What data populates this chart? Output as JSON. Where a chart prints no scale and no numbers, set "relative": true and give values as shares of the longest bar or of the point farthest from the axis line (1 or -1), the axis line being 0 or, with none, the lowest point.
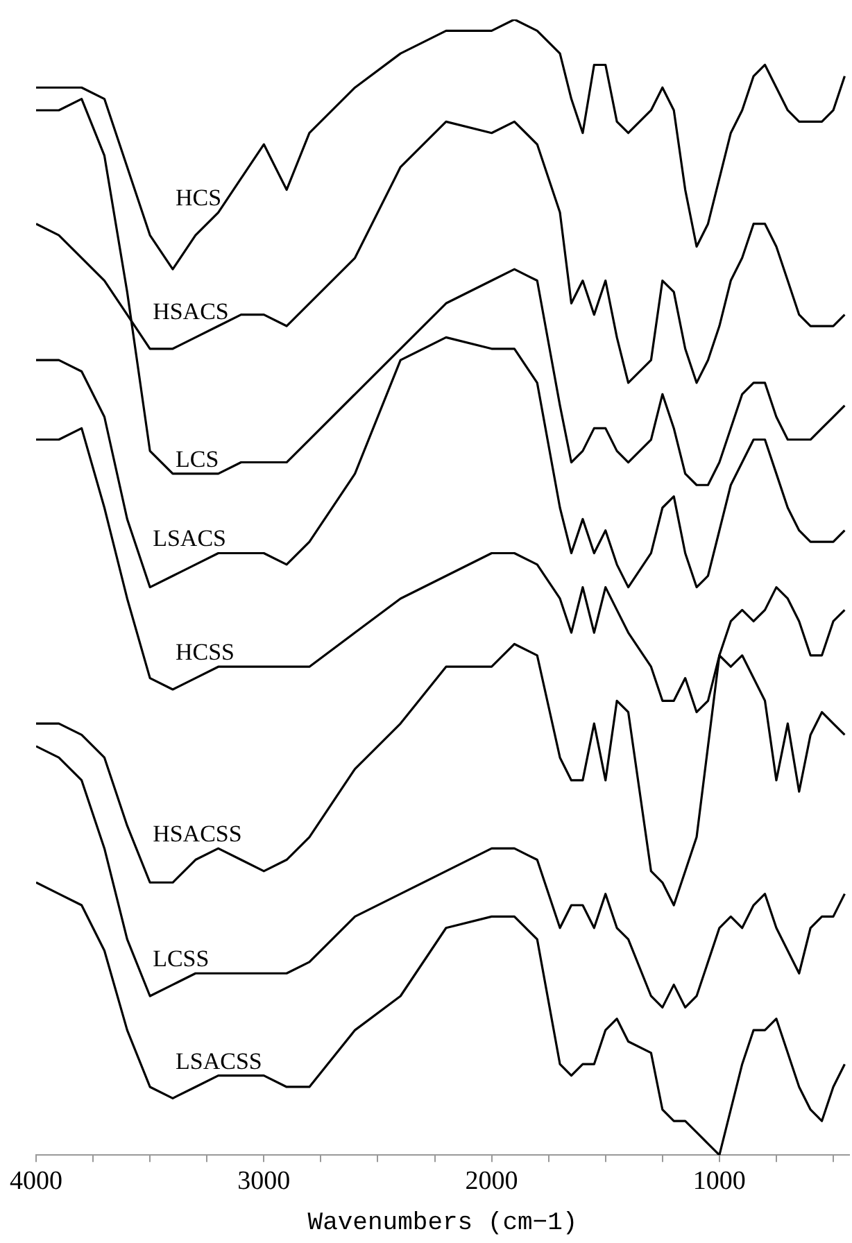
{
  "chart_data": {
    "type": "line",
    "xlabel": "Wavenumbers (cm−1)",
    "relative": true,
    "tick_labels": "x",
    "xlim": [
      4000,
      430
    ],
    "xticks": [
      4000,
      {
        "value": 3750,
        "label": null
      },
      {
        "value": 3500,
        "label": null
      },
      {
        "value": 3250,
        "label": null
      },
      3000,
      {
        "value": 2750,
        "label": null
      },
      {
        "value": 2500,
        "label": null
      },
      {
        "value": 2250,
        "label": null
      },
      2000,
      {
        "value": 1750,
        "label": null
      },
      {
        "value": 1500,
        "label": null
      },
      {
        "value": 1250,
        "label": null
      },
      1000,
      {
        "value": 750,
        "label": null
      },
      {
        "value": 500,
        "label": null
      }
    ],
    "x": [
      4000,
      3900,
      3800,
      3700,
      3600,
      3500,
      3400,
      3300,
      3200,
      3100,
      3000,
      2900,
      2800,
      2600,
      2400,
      2200,
      2000,
      1900,
      1800,
      1700,
      1650,
      1600,
      1550,
      1500,
      1450,
      1400,
      1300,
      1250,
      1200,
      1150,
      1100,
      1050,
      1000,
      950,
      900,
      850,
      800,
      750,
      700,
      650,
      600,
      550,
      500,
      450
    ],
    "series": [
      {
        "name": "HCS",
        "color": "#000000",
        "values": [
          0.94,
          0.94,
          0.94,
          0.93,
          0.87,
          0.81,
          0.78,
          0.81,
          0.83,
          0.86,
          0.89,
          0.85,
          0.9,
          0.94,
          0.97,
          0.99,
          0.99,
          1.0,
          0.99,
          0.97,
          0.93,
          0.9,
          0.96,
          0.96,
          0.91,
          0.9,
          0.92,
          0.94,
          0.92,
          0.85,
          0.8,
          0.82,
          0.86,
          0.9,
          0.92,
          0.95,
          0.96,
          0.94,
          0.92,
          0.91,
          0.91,
          0.91,
          0.92,
          0.95
        ]
      },
      {
        "name": "HSACS",
        "color": "#000000",
        "values": [
          0.82,
          0.81,
          0.79,
          0.77,
          0.74,
          0.71,
          0.71,
          0.72,
          0.73,
          0.74,
          0.74,
          0.73,
          0.75,
          0.79,
          0.87,
          0.91,
          0.9,
          0.91,
          0.89,
          0.83,
          0.75,
          0.77,
          0.74,
          0.77,
          0.72,
          0.68,
          0.7,
          0.77,
          0.76,
          0.71,
          0.68,
          0.7,
          0.73,
          0.77,
          0.79,
          0.82,
          0.82,
          0.8,
          0.77,
          0.74,
          0.73,
          0.73,
          0.73,
          0.74
        ]
      },
      {
        "name": "LCS",
        "color": "#000000",
        "values": [
          0.92,
          0.92,
          0.93,
          0.88,
          0.76,
          0.62,
          0.6,
          0.6,
          0.6,
          0.61,
          0.61,
          0.61,
          0.63,
          0.67,
          0.71,
          0.75,
          0.77,
          0.78,
          0.77,
          0.66,
          0.61,
          0.62,
          0.64,
          0.64,
          0.62,
          0.61,
          0.63,
          0.67,
          0.64,
          0.6,
          0.59,
          0.59,
          0.61,
          0.64,
          0.67,
          0.68,
          0.68,
          0.65,
          0.63,
          0.63,
          0.63,
          0.64,
          0.65,
          0.66
        ]
      },
      {
        "name": "LSACS",
        "color": "#000000",
        "values": [
          0.7,
          0.7,
          0.69,
          0.65,
          0.56,
          0.5,
          0.51,
          0.52,
          0.53,
          0.53,
          0.53,
          0.52,
          0.54,
          0.6,
          0.7,
          0.72,
          0.71,
          0.71,
          0.68,
          0.57,
          0.53,
          0.56,
          0.53,
          0.55,
          0.52,
          0.5,
          0.53,
          0.57,
          0.58,
          0.53,
          0.5,
          0.51,
          0.55,
          0.59,
          0.61,
          0.63,
          0.63,
          0.6,
          0.57,
          0.55,
          0.54,
          0.54,
          0.54,
          0.55
        ]
      },
      {
        "name": "HCSS",
        "color": "#000000",
        "values": [
          0.63,
          0.63,
          0.64,
          0.57,
          0.49,
          0.42,
          0.41,
          0.42,
          0.43,
          0.43,
          0.43,
          0.43,
          0.43,
          0.46,
          0.49,
          0.51,
          0.53,
          0.53,
          0.52,
          0.49,
          0.46,
          0.5,
          0.46,
          0.5,
          0.48,
          0.46,
          0.43,
          0.4,
          0.4,
          0.42,
          0.39,
          0.4,
          0.44,
          0.47,
          0.48,
          0.47,
          0.48,
          0.5,
          0.49,
          0.47,
          0.44,
          0.44,
          0.47,
          0.48
        ]
      },
      {
        "name": "HSACSS",
        "color": "#000000",
        "values": [
          0.38,
          0.38,
          0.37,
          0.35,
          0.29,
          0.24,
          0.24,
          0.26,
          0.27,
          0.26,
          0.25,
          0.26,
          0.28,
          0.34,
          0.38,
          0.43,
          0.43,
          0.45,
          0.44,
          0.35,
          0.33,
          0.33,
          0.38,
          0.33,
          0.4,
          0.39,
          0.25,
          0.24,
          0.22,
          0.25,
          0.28,
          0.36,
          0.44,
          0.43,
          0.44,
          0.42,
          0.4,
          0.33,
          0.38,
          0.32,
          0.37,
          0.39,
          0.38,
          0.37
        ]
      },
      {
        "name": "LCSS",
        "color": "#000000",
        "values": [
          0.36,
          0.35,
          0.33,
          0.27,
          0.19,
          0.14,
          0.15,
          0.16,
          0.16,
          0.16,
          0.16,
          0.16,
          0.17,
          0.21,
          0.23,
          0.25,
          0.27,
          0.27,
          0.26,
          0.2,
          0.22,
          0.22,
          0.2,
          0.23,
          0.2,
          0.19,
          0.14,
          0.13,
          0.15,
          0.13,
          0.14,
          0.17,
          0.2,
          0.21,
          0.2,
          0.22,
          0.23,
          0.2,
          0.18,
          0.16,
          0.2,
          0.21,
          0.21,
          0.23
        ]
      },
      {
        "name": "LSACSS",
        "color": "#000000",
        "values": [
          0.24,
          0.23,
          0.22,
          0.18,
          0.11,
          0.06,
          0.05,
          0.06,
          0.07,
          0.07,
          0.07,
          0.06,
          0.06,
          0.11,
          0.14,
          0.2,
          0.21,
          0.21,
          0.19,
          0.08,
          0.07,
          0.08,
          0.08,
          0.11,
          0.12,
          0.1,
          0.09,
          0.04,
          0.03,
          0.03,
          0.02,
          0.01,
          0,
          0.04,
          0.08,
          0.11,
          0.11,
          0.12,
          0.09,
          0.06,
          0.04,
          0.03,
          0.06,
          0.08
        ]
      }
    ]
  }
}
